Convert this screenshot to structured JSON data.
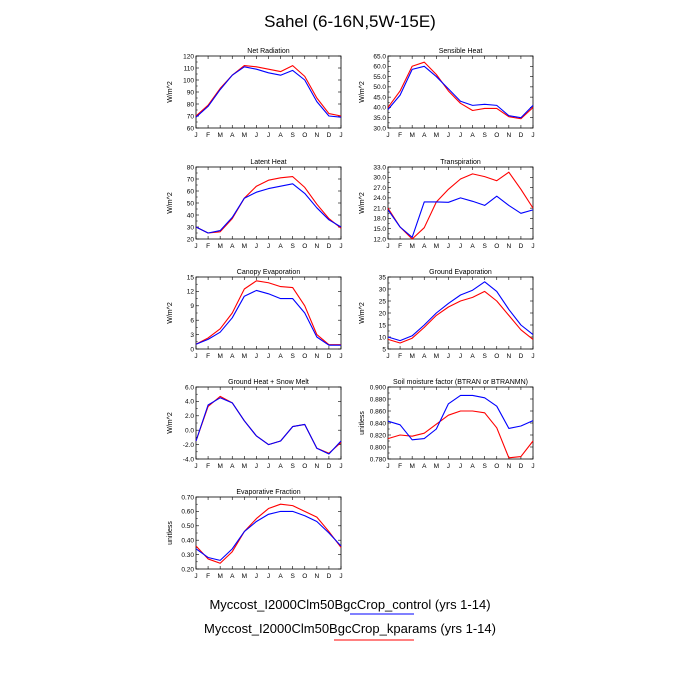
{
  "page_title": "Sahel (6-16N,5W-15E)",
  "month_labels": [
    "J",
    "F",
    "M",
    "A",
    "M",
    "J",
    "J",
    "A",
    "S",
    "O",
    "N",
    "D",
    "J"
  ],
  "legend": [
    {
      "label": "Myccost_I2000Clm50BgcCrop_control (yrs 1-14)",
      "color": "#0000ff"
    },
    {
      "label": "Myccost_I2000Clm50BgcCrop_kparams (yrs 1-14)",
      "color": "#ff0000"
    }
  ],
  "chart_data": [
    {
      "type": "line",
      "title": "Net Radiation",
      "ylabel": "W/m^2",
      "ylim": [
        60,
        120
      ],
      "yticks": [
        "60",
        "70",
        "80",
        "90",
        "100",
        "110",
        "120"
      ],
      "series": [
        {
          "name": "control",
          "color": "#0000ff",
          "values": [
            69,
            78,
            92,
            104,
            111,
            109,
            106,
            104,
            108,
            100,
            82,
            70,
            69
          ]
        },
        {
          "name": "kparams",
          "color": "#ff0000",
          "values": [
            70,
            79,
            93,
            104,
            112,
            111,
            109,
            107,
            112,
            103,
            85,
            72,
            70
          ]
        }
      ]
    },
    {
      "type": "line",
      "title": "Sensible Heat",
      "ylabel": "W/m^2",
      "ylim": [
        30,
        65
      ],
      "yticks": [
        "30.0",
        "35.0",
        "40.0",
        "45.0",
        "50.0",
        "55.0",
        "60.0",
        "65.0"
      ],
      "series": [
        {
          "name": "control",
          "color": "#0000ff",
          "values": [
            39,
            46,
            58.5,
            60,
            55,
            49,
            43,
            41,
            41.5,
            41,
            36,
            35,
            41
          ]
        },
        {
          "name": "kparams",
          "color": "#ff0000",
          "values": [
            40,
            48,
            60,
            62,
            56,
            48,
            42,
            38.5,
            39.5,
            39.5,
            35.5,
            34.5,
            40
          ]
        }
      ]
    },
    {
      "type": "line",
      "title": "Latent Heat",
      "ylabel": "W/m^2",
      "ylim": [
        20,
        80
      ],
      "yticks": [
        "20",
        "30",
        "40",
        "50",
        "60",
        "70",
        "80"
      ],
      "series": [
        {
          "name": "control",
          "color": "#0000ff",
          "values": [
            30,
            25,
            27,
            38,
            54,
            59,
            62,
            64,
            66,
            58,
            46,
            36,
            30
          ]
        },
        {
          "name": "kparams",
          "color": "#ff0000",
          "values": [
            30,
            25,
            26,
            37,
            54,
            64,
            69,
            71,
            72,
            63,
            49,
            37,
            29
          ]
        }
      ]
    },
    {
      "type": "line",
      "title": "Transpiration",
      "ylabel": "W/m^2",
      "ylim": [
        12,
        33
      ],
      "yticks": [
        "12.0",
        "15.0",
        "18.0",
        "21.0",
        "24.0",
        "27.0",
        "30.0",
        "33.0"
      ],
      "series": [
        {
          "name": "control",
          "color": "#0000ff",
          "values": [
            20.5,
            15.5,
            12.5,
            22.8,
            22.8,
            22.7,
            24,
            23,
            21.8,
            24.5,
            21.8,
            19.5,
            20.5
          ]
        },
        {
          "name": "kparams",
          "color": "#ff0000",
          "values": [
            21,
            15.5,
            12,
            15.3,
            22.8,
            26.5,
            29.5,
            31,
            30.2,
            29,
            31.5,
            26.5,
            21
          ]
        }
      ]
    },
    {
      "type": "line",
      "title": "Canopy Evaporation",
      "ylabel": "W/m^2",
      "ylim": [
        0,
        15
      ],
      "yticks": [
        "0",
        "3",
        "6",
        "9",
        "12",
        "15"
      ],
      "series": [
        {
          "name": "control",
          "color": "#0000ff",
          "values": [
            1,
            2,
            3.5,
            6.5,
            11,
            12.2,
            11.5,
            10.5,
            10.5,
            7.5,
            2.5,
            0.8,
            0.8
          ]
        },
        {
          "name": "kparams",
          "color": "#ff0000",
          "values": [
            1,
            2.3,
            4.2,
            7.5,
            12.5,
            14.2,
            13.8,
            13,
            12.8,
            9,
            3,
            0.9,
            0.9
          ]
        }
      ]
    },
    {
      "type": "line",
      "title": "Ground Evaporation",
      "ylabel": "W/m^2",
      "ylim": [
        5,
        35
      ],
      "yticks": [
        "5",
        "10",
        "15",
        "20",
        "25",
        "30",
        "35"
      ],
      "series": [
        {
          "name": "control",
          "color": "#0000ff",
          "values": [
            10,
            8.5,
            10.5,
            15,
            20,
            24,
            27.5,
            29.5,
            33,
            29,
            21.5,
            15,
            11
          ]
        },
        {
          "name": "kparams",
          "color": "#ff0000",
          "values": [
            9,
            7.5,
            9.5,
            14,
            19,
            22.5,
            25,
            26.5,
            29,
            25,
            19,
            13,
            9
          ]
        }
      ]
    },
    {
      "type": "line",
      "title": "Ground Heat + Snow Melt",
      "ylabel": "W/m^2",
      "ylim": [
        -4,
        6
      ],
      "yticks": [
        "-4.0",
        "-2.0",
        "0.0",
        "2.0",
        "4.0",
        "6.0"
      ],
      "series": [
        {
          "name": "control",
          "color": "#0000ff",
          "values": [
            -1.5,
            3.5,
            4.5,
            3.8,
            1.3,
            -0.8,
            -2,
            -1.5,
            0.5,
            0.8,
            -2.5,
            -3.3,
            -1.5
          ]
        },
        {
          "name": "kparams",
          "color": "#ff0000",
          "values": [
            -1.5,
            3.3,
            4.7,
            3.8,
            1.3,
            -0.8,
            -2,
            -1.5,
            0.5,
            0.8,
            -2.5,
            -3.2,
            -1.7
          ]
        }
      ]
    },
    {
      "type": "line",
      "title": "Soil moisture factor (BTRAN or BTRANMN)",
      "ylabel": "unitless",
      "ylim": [
        0.78,
        0.9
      ],
      "yticks": [
        "0.780",
        "0.800",
        "0.820",
        "0.840",
        "0.860",
        "0.880",
        "0.900"
      ],
      "series": [
        {
          "name": "control",
          "color": "#0000ff",
          "values": [
            0.843,
            0.837,
            0.812,
            0.814,
            0.83,
            0.872,
            0.886,
            0.886,
            0.882,
            0.868,
            0.831,
            0.835,
            0.844
          ]
        },
        {
          "name": "kparams",
          "color": "#ff0000",
          "values": [
            0.814,
            0.82,
            0.818,
            0.823,
            0.838,
            0.853,
            0.86,
            0.86,
            0.857,
            0.832,
            0.782,
            0.784,
            0.81
          ]
        }
      ]
    },
    {
      "type": "line",
      "title": "Evaporative Fraction",
      "ylabel": "unitless",
      "ylim": [
        0.2,
        0.7
      ],
      "yticks": [
        "0.20",
        "0.30",
        "0.40",
        "0.50",
        "0.60",
        "0.70"
      ],
      "series": [
        {
          "name": "control",
          "color": "#0000ff",
          "values": [
            0.34,
            0.28,
            0.26,
            0.34,
            0.46,
            0.53,
            0.58,
            0.6,
            0.6,
            0.57,
            0.53,
            0.45,
            0.36
          ]
        },
        {
          "name": "kparams",
          "color": "#ff0000",
          "values": [
            0.36,
            0.27,
            0.24,
            0.32,
            0.46,
            0.55,
            0.62,
            0.65,
            0.64,
            0.6,
            0.56,
            0.46,
            0.35
          ]
        }
      ]
    }
  ]
}
